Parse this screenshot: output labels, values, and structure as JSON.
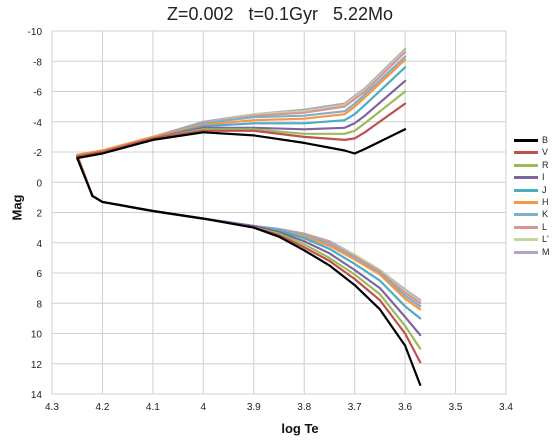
{
  "chart_data": {
    "type": "line",
    "title": "Z=0.002   t=0.1Gyr   5.22Mo",
    "xlabel": "log Te",
    "ylabel": "Mag",
    "xlim": [
      4.3,
      3.4
    ],
    "ylim": [
      14,
      -10
    ],
    "x_inverted": true,
    "y_inverted": true,
    "x_ticks": [
      "4.3",
      "4.2",
      "4.1",
      "4",
      "3.9",
      "3.8",
      "3.7",
      "3.6",
      "3.5",
      "3.4"
    ],
    "y_ticks": [
      "-10",
      "-8",
      "-6",
      "-4",
      "-2",
      "0",
      "2",
      "4",
      "6",
      "8",
      "10",
      "12",
      "14"
    ],
    "grid": true,
    "legend_position": "right",
    "series": [
      {
        "name": "B",
        "color": "#000000",
        "lower": [
          [
            4.22,
            0.9
          ],
          [
            4.2,
            1.3
          ],
          [
            4.1,
            1.9
          ],
          [
            4.0,
            2.4
          ],
          [
            3.9,
            3.0
          ],
          [
            3.85,
            3.6
          ],
          [
            3.8,
            4.5
          ],
          [
            3.75,
            5.5
          ],
          [
            3.7,
            6.8
          ],
          [
            3.65,
            8.4
          ],
          [
            3.6,
            10.8
          ],
          [
            3.57,
            13.4
          ]
        ],
        "upper": [
          [
            4.22,
            0.9
          ],
          [
            4.25,
            -1.6
          ],
          [
            4.2,
            -1.9
          ],
          [
            4.1,
            -2.8
          ],
          [
            4.0,
            -3.3
          ],
          [
            3.9,
            -3.1
          ],
          [
            3.8,
            -2.6
          ],
          [
            3.72,
            -2.1
          ],
          [
            3.7,
            -1.9
          ],
          [
            3.68,
            -2.2
          ],
          [
            3.6,
            -3.5
          ]
        ]
      },
      {
        "name": "V",
        "color": "#c0504d",
        "lower": [
          [
            4.22,
            0.9
          ],
          [
            4.2,
            1.3
          ],
          [
            4.1,
            1.9
          ],
          [
            4.0,
            2.4
          ],
          [
            3.9,
            3.0
          ],
          [
            3.85,
            3.5
          ],
          [
            3.8,
            4.3
          ],
          [
            3.75,
            5.2
          ],
          [
            3.7,
            6.4
          ],
          [
            3.65,
            7.8
          ],
          [
            3.6,
            10.0
          ],
          [
            3.57,
            11.9
          ]
        ],
        "upper": [
          [
            4.22,
            0.9
          ],
          [
            4.25,
            -1.7
          ],
          [
            4.2,
            -2.0
          ],
          [
            4.1,
            -2.9
          ],
          [
            4.0,
            -3.4
          ],
          [
            3.9,
            -3.4
          ],
          [
            3.8,
            -3.0
          ],
          [
            3.72,
            -2.8
          ],
          [
            3.7,
            -2.9
          ],
          [
            3.68,
            -3.3
          ],
          [
            3.6,
            -5.2
          ]
        ]
      },
      {
        "name": "R",
        "color": "#9bbb59",
        "lower": [
          [
            4.22,
            0.9
          ],
          [
            4.2,
            1.3
          ],
          [
            4.1,
            1.9
          ],
          [
            4.0,
            2.4
          ],
          [
            3.9,
            3.0
          ],
          [
            3.85,
            3.4
          ],
          [
            3.8,
            4.1
          ],
          [
            3.75,
            5.0
          ],
          [
            3.7,
            6.1
          ],
          [
            3.65,
            7.4
          ],
          [
            3.6,
            9.5
          ],
          [
            3.57,
            11.0
          ]
        ],
        "upper": [
          [
            4.22,
            0.9
          ],
          [
            4.25,
            -1.7
          ],
          [
            4.2,
            -2.0
          ],
          [
            4.1,
            -2.9
          ],
          [
            4.0,
            -3.5
          ],
          [
            3.9,
            -3.5
          ],
          [
            3.8,
            -3.2
          ],
          [
            3.72,
            -3.2
          ],
          [
            3.7,
            -3.4
          ],
          [
            3.68,
            -3.9
          ],
          [
            3.6,
            -6.0
          ]
        ]
      },
      {
        "name": "I",
        "color": "#8064a2",
        "lower": [
          [
            4.22,
            0.9
          ],
          [
            4.2,
            1.3
          ],
          [
            4.1,
            1.9
          ],
          [
            4.0,
            2.4
          ],
          [
            3.9,
            2.9
          ],
          [
            3.85,
            3.3
          ],
          [
            3.8,
            3.9
          ],
          [
            3.75,
            4.7
          ],
          [
            3.7,
            5.8
          ],
          [
            3.65,
            7.0
          ],
          [
            3.6,
            8.9
          ],
          [
            3.57,
            10.1
          ]
        ],
        "upper": [
          [
            4.22,
            0.9
          ],
          [
            4.25,
            -1.7
          ],
          [
            4.2,
            -2.0
          ],
          [
            4.1,
            -2.9
          ],
          [
            4.0,
            -3.6
          ],
          [
            3.9,
            -3.6
          ],
          [
            3.8,
            -3.5
          ],
          [
            3.72,
            -3.6
          ],
          [
            3.7,
            -3.9
          ],
          [
            3.68,
            -4.4
          ],
          [
            3.6,
            -6.7
          ]
        ]
      },
      {
        "name": "J",
        "color": "#4bacc6",
        "lower": [
          [
            4.22,
            0.9
          ],
          [
            4.2,
            1.3
          ],
          [
            4.1,
            1.9
          ],
          [
            4.0,
            2.4
          ],
          [
            3.9,
            2.9
          ],
          [
            3.85,
            3.2
          ],
          [
            3.8,
            3.7
          ],
          [
            3.75,
            4.4
          ],
          [
            3.7,
            5.4
          ],
          [
            3.65,
            6.5
          ],
          [
            3.6,
            8.2
          ],
          [
            3.57,
            9.0
          ]
        ],
        "upper": [
          [
            4.22,
            0.9
          ],
          [
            4.25,
            -1.7
          ],
          [
            4.2,
            -2.0
          ],
          [
            4.1,
            -2.9
          ],
          [
            4.0,
            -3.7
          ],
          [
            3.9,
            -3.9
          ],
          [
            3.8,
            -3.9
          ],
          [
            3.72,
            -4.1
          ],
          [
            3.7,
            -4.5
          ],
          [
            3.68,
            -5.1
          ],
          [
            3.6,
            -7.6
          ]
        ]
      },
      {
        "name": "H",
        "color": "#f79646",
        "lower": [
          [
            4.22,
            0.9
          ],
          [
            4.2,
            1.3
          ],
          [
            4.1,
            1.9
          ],
          [
            4.0,
            2.4
          ],
          [
            3.9,
            2.9
          ],
          [
            3.85,
            3.2
          ],
          [
            3.8,
            3.6
          ],
          [
            3.75,
            4.2
          ],
          [
            3.7,
            5.1
          ],
          [
            3.65,
            6.1
          ],
          [
            3.6,
            7.7
          ],
          [
            3.57,
            8.4
          ]
        ],
        "upper": [
          [
            4.22,
            0.9
          ],
          [
            4.25,
            -1.8
          ],
          [
            4.2,
            -2.1
          ],
          [
            4.1,
            -3.0
          ],
          [
            4.0,
            -3.8
          ],
          [
            3.9,
            -4.1
          ],
          [
            3.8,
            -4.2
          ],
          [
            3.72,
            -4.5
          ],
          [
            3.7,
            -5.0
          ],
          [
            3.68,
            -5.6
          ],
          [
            3.6,
            -8.1
          ]
        ]
      },
      {
        "name": "K",
        "color": "#7fafc9",
        "lower": [
          [
            4.22,
            0.9
          ],
          [
            4.2,
            1.3
          ],
          [
            4.1,
            1.9
          ],
          [
            4.0,
            2.4
          ],
          [
            3.9,
            2.9
          ],
          [
            3.85,
            3.1
          ],
          [
            3.8,
            3.5
          ],
          [
            3.75,
            4.1
          ],
          [
            3.7,
            5.0
          ],
          [
            3.65,
            6.0
          ],
          [
            3.6,
            7.5
          ],
          [
            3.57,
            8.2
          ]
        ],
        "upper": [
          [
            4.22,
            0.9
          ],
          [
            4.25,
            -1.8
          ],
          [
            4.2,
            -2.1
          ],
          [
            4.1,
            -3.0
          ],
          [
            4.0,
            -3.9
          ],
          [
            3.9,
            -4.3
          ],
          [
            3.8,
            -4.4
          ],
          [
            3.72,
            -4.7
          ],
          [
            3.7,
            -5.2
          ],
          [
            3.68,
            -5.8
          ],
          [
            3.6,
            -8.3
          ]
        ]
      },
      {
        "name": "L",
        "color": "#d99694",
        "lower": [
          [
            4.22,
            0.9
          ],
          [
            4.2,
            1.3
          ],
          [
            4.1,
            1.9
          ],
          [
            4.0,
            2.4
          ],
          [
            3.9,
            2.9
          ],
          [
            3.85,
            3.1
          ],
          [
            3.8,
            3.4
          ],
          [
            3.75,
            4.0
          ],
          [
            3.7,
            4.9
          ],
          [
            3.65,
            5.9
          ],
          [
            3.6,
            7.3
          ],
          [
            3.57,
            8.0
          ]
        ],
        "upper": [
          [
            4.22,
            0.9
          ],
          [
            4.25,
            -1.8
          ],
          [
            4.2,
            -2.1
          ],
          [
            4.1,
            -3.0
          ],
          [
            4.0,
            -3.9
          ],
          [
            3.9,
            -4.4
          ],
          [
            3.8,
            -4.6
          ],
          [
            3.72,
            -5.0
          ],
          [
            3.7,
            -5.5
          ],
          [
            3.68,
            -6.0
          ],
          [
            3.6,
            -8.6
          ]
        ]
      },
      {
        "name": "L'",
        "color": "#c3d69b",
        "lower": [
          [
            4.22,
            0.9
          ],
          [
            4.2,
            1.3
          ],
          [
            4.1,
            1.9
          ],
          [
            4.0,
            2.4
          ],
          [
            3.9,
            2.9
          ],
          [
            3.85,
            3.1
          ],
          [
            3.8,
            3.4
          ],
          [
            3.75,
            4.0
          ],
          [
            3.7,
            4.8
          ],
          [
            3.65,
            5.8
          ],
          [
            3.6,
            7.2
          ],
          [
            3.57,
            7.9
          ]
        ],
        "upper": [
          [
            4.22,
            0.9
          ],
          [
            4.25,
            -1.8
          ],
          [
            4.2,
            -2.1
          ],
          [
            4.1,
            -3.0
          ],
          [
            4.0,
            -3.9
          ],
          [
            3.9,
            -4.5
          ],
          [
            3.8,
            -4.7
          ],
          [
            3.72,
            -5.1
          ],
          [
            3.7,
            -5.6
          ],
          [
            3.68,
            -6.1
          ],
          [
            3.6,
            -8.7
          ]
        ]
      },
      {
        "name": "M",
        "color": "#b3a2c7",
        "lower": [
          [
            4.22,
            0.9
          ],
          [
            4.2,
            1.3
          ],
          [
            4.1,
            1.9
          ],
          [
            4.0,
            2.4
          ],
          [
            3.9,
            2.9
          ],
          [
            3.85,
            3.1
          ],
          [
            3.8,
            3.4
          ],
          [
            3.75,
            3.9
          ],
          [
            3.7,
            4.8
          ],
          [
            3.65,
            5.8
          ],
          [
            3.6,
            7.1
          ],
          [
            3.57,
            7.8
          ]
        ],
        "upper": [
          [
            4.22,
            0.9
          ],
          [
            4.25,
            -1.8
          ],
          [
            4.2,
            -2.1
          ],
          [
            4.1,
            -3.0
          ],
          [
            4.0,
            -4.0
          ],
          [
            3.9,
            -4.5
          ],
          [
            3.8,
            -4.8
          ],
          [
            3.72,
            -5.2
          ],
          [
            3.7,
            -5.7
          ],
          [
            3.68,
            -6.2
          ],
          [
            3.6,
            -8.8
          ]
        ]
      }
    ]
  }
}
